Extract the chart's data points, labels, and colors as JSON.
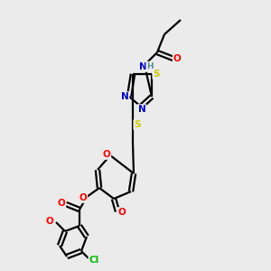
{
  "background_color": "#ebebeb",
  "bond_color": "#000000",
  "atom_colors": {
    "O": "#ff0000",
    "N": "#0000cd",
    "S": "#cccc00",
    "Cl": "#00bb00",
    "C": "#000000",
    "H": "#5a9090"
  },
  "figsize": [
    3.0,
    3.0
  ],
  "dpi": 100
}
